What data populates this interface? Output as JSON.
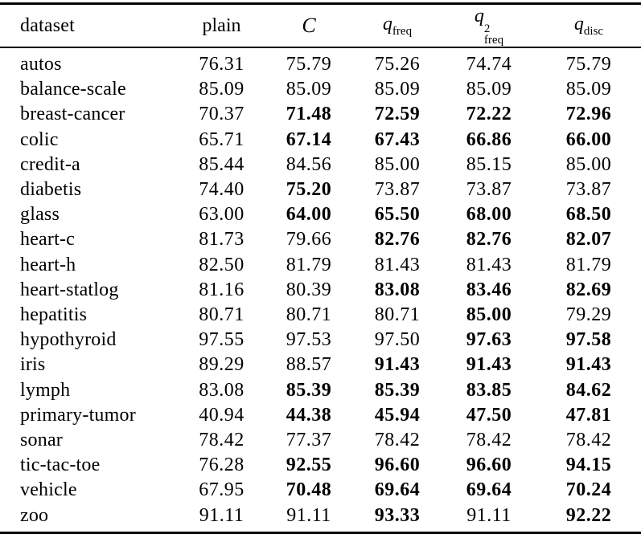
{
  "page": {
    "background": "#ffffff",
    "text_color": "#000000",
    "rule_color": "#000000"
  },
  "table": {
    "header": {
      "dataset": "dataset",
      "plain": "plain",
      "classifier": "C",
      "q_freq": {
        "base": "q",
        "sub": "freq"
      },
      "q_freq_sq": {
        "base": "q",
        "sup": "2",
        "sub": "freq"
      },
      "q_disc": {
        "base": "q",
        "sub": "disc"
      }
    },
    "rows": [
      {
        "dataset": "autos",
        "values": [
          "76.31",
          "75.79",
          "75.26",
          "74.74",
          "75.79"
        ],
        "bold": [
          false,
          false,
          false,
          false,
          false
        ]
      },
      {
        "dataset": "balance-scale",
        "values": [
          "85.09",
          "85.09",
          "85.09",
          "85.09",
          "85.09"
        ],
        "bold": [
          false,
          false,
          false,
          false,
          false
        ]
      },
      {
        "dataset": "breast-cancer",
        "values": [
          "70.37",
          "71.48",
          "72.59",
          "72.22",
          "72.96"
        ],
        "bold": [
          false,
          true,
          true,
          true,
          true
        ]
      },
      {
        "dataset": "colic",
        "values": [
          "65.71",
          "67.14",
          "67.43",
          "66.86",
          "66.00"
        ],
        "bold": [
          false,
          true,
          true,
          true,
          true
        ]
      },
      {
        "dataset": "credit-a",
        "values": [
          "85.44",
          "84.56",
          "85.00",
          "85.15",
          "85.00"
        ],
        "bold": [
          false,
          false,
          false,
          false,
          false
        ]
      },
      {
        "dataset": "diabetis",
        "values": [
          "74.40",
          "75.20",
          "73.87",
          "73.87",
          "73.87"
        ],
        "bold": [
          false,
          true,
          false,
          false,
          false
        ]
      },
      {
        "dataset": "glass",
        "values": [
          "63.00",
          "64.00",
          "65.50",
          "68.00",
          "68.50"
        ],
        "bold": [
          false,
          true,
          true,
          true,
          true
        ]
      },
      {
        "dataset": "heart-c",
        "values": [
          "81.73",
          "79.66",
          "82.76",
          "82.76",
          "82.07"
        ],
        "bold": [
          false,
          false,
          true,
          true,
          true
        ]
      },
      {
        "dataset": "heart-h",
        "values": [
          "82.50",
          "81.79",
          "81.43",
          "81.43",
          "81.79"
        ],
        "bold": [
          false,
          false,
          false,
          false,
          false
        ]
      },
      {
        "dataset": "heart-statlog",
        "values": [
          "81.16",
          "80.39",
          "83.08",
          "83.46",
          "82.69"
        ],
        "bold": [
          false,
          false,
          true,
          true,
          true
        ]
      },
      {
        "dataset": "hepatitis",
        "values": [
          "80.71",
          "80.71",
          "80.71",
          "85.00",
          "79.29"
        ],
        "bold": [
          false,
          false,
          false,
          true,
          false
        ]
      },
      {
        "dataset": "hypothyroid",
        "values": [
          "97.55",
          "97.53",
          "97.50",
          "97.63",
          "97.58"
        ],
        "bold": [
          false,
          false,
          false,
          true,
          true
        ]
      },
      {
        "dataset": "iris",
        "values": [
          "89.29",
          "88.57",
          "91.43",
          "91.43",
          "91.43"
        ],
        "bold": [
          false,
          false,
          true,
          true,
          true
        ]
      },
      {
        "dataset": "lymph",
        "values": [
          "83.08",
          "85.39",
          "85.39",
          "83.85",
          "84.62"
        ],
        "bold": [
          false,
          true,
          true,
          true,
          true
        ]
      },
      {
        "dataset": "primary-tumor",
        "values": [
          "40.94",
          "44.38",
          "45.94",
          "47.50",
          "47.81"
        ],
        "bold": [
          false,
          true,
          true,
          true,
          true
        ]
      },
      {
        "dataset": "sonar",
        "values": [
          "78.42",
          "77.37",
          "78.42",
          "78.42",
          "78.42"
        ],
        "bold": [
          false,
          false,
          false,
          false,
          false
        ]
      },
      {
        "dataset": "tic-tac-toe",
        "values": [
          "76.28",
          "92.55",
          "96.60",
          "96.60",
          "94.15"
        ],
        "bold": [
          false,
          true,
          true,
          true,
          true
        ]
      },
      {
        "dataset": "vehicle",
        "values": [
          "67.95",
          "70.48",
          "69.64",
          "69.64",
          "70.24"
        ],
        "bold": [
          false,
          true,
          true,
          true,
          true
        ]
      },
      {
        "dataset": "zoo",
        "values": [
          "91.11",
          "91.11",
          "93.33",
          "91.11",
          "92.22"
        ],
        "bold": [
          false,
          false,
          true,
          false,
          true
        ]
      }
    ]
  }
}
